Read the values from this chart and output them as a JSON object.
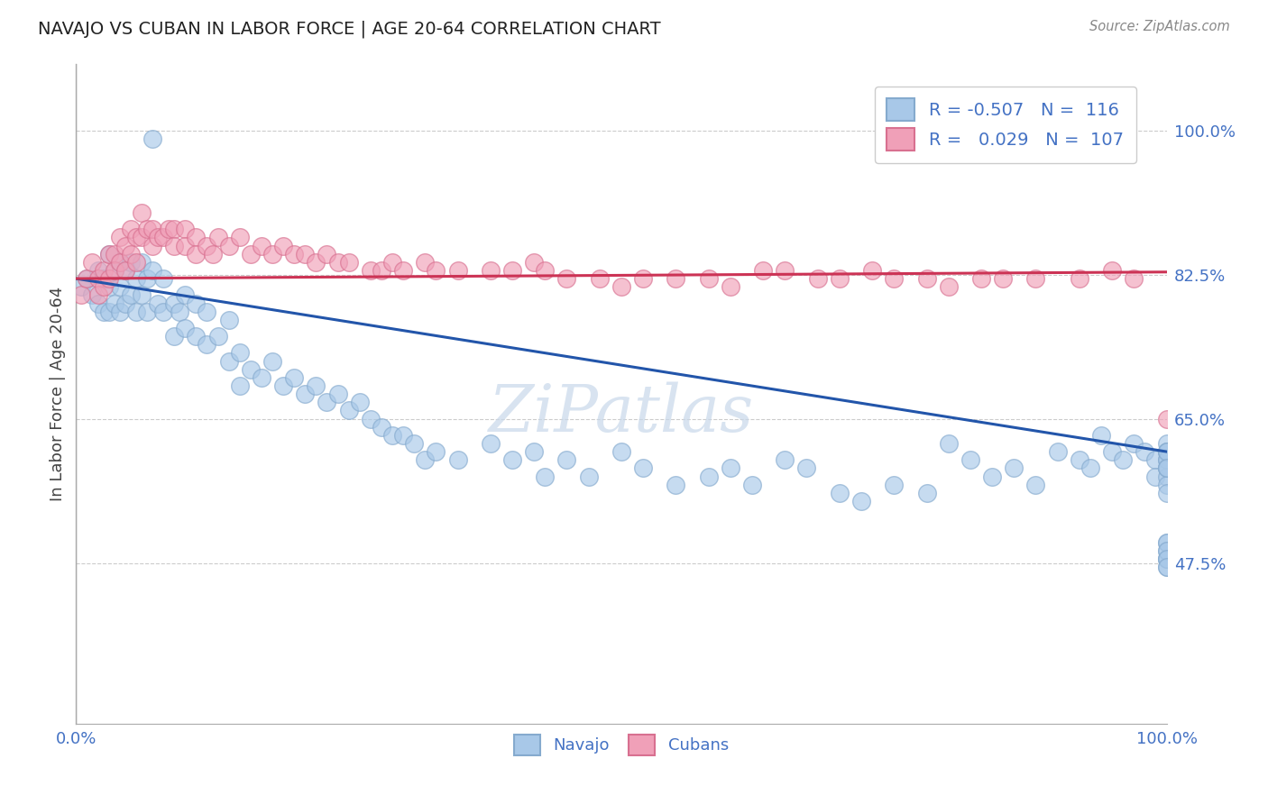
{
  "title": "NAVAJO VS CUBAN IN LABOR FORCE | AGE 20-64 CORRELATION CHART",
  "source": "Source: ZipAtlas.com",
  "ylabel": "In Labor Force | Age 20-64",
  "xlim": [
    0.0,
    1.0
  ],
  "ylim": [
    0.28,
    1.08
  ],
  "yticks": [
    0.475,
    0.65,
    0.825,
    1.0
  ],
  "ytick_labels": [
    "47.5%",
    "65.0%",
    "82.5%",
    "100.0%"
  ],
  "xtick_labels": [
    "0.0%",
    "100.0%"
  ],
  "navajo_R": -0.507,
  "navajo_N": 116,
  "cuban_R": 0.029,
  "cuban_N": 107,
  "navajo_color": "#a8c8e8",
  "navajo_edge_color": "#85aace",
  "navajo_line_color": "#2255aa",
  "cuban_color": "#f0a0b8",
  "cuban_edge_color": "#d87090",
  "cuban_line_color": "#cc3355",
  "legend_label_navajo": "Navajo",
  "legend_label_cuban": "Cubans",
  "background_color": "#ffffff",
  "grid_color": "#cccccc",
  "watermark_color": "#c8d8ea",
  "tick_color": "#4472c4",
  "title_color": "#222222",
  "source_color": "#888888",
  "navajo_line_start_y": 0.82,
  "navajo_line_end_y": 0.61,
  "cuban_line_start_y": 0.82,
  "cuban_line_end_y": 0.828,
  "navajo_scatter_x": [
    0.005,
    0.01,
    0.015,
    0.02,
    0.02,
    0.025,
    0.025,
    0.03,
    0.03,
    0.03,
    0.035,
    0.035,
    0.04,
    0.04,
    0.04,
    0.045,
    0.045,
    0.05,
    0.05,
    0.055,
    0.055,
    0.06,
    0.06,
    0.065,
    0.065,
    0.07,
    0.07,
    0.075,
    0.08,
    0.08,
    0.09,
    0.09,
    0.095,
    0.1,
    0.1,
    0.11,
    0.11,
    0.12,
    0.12,
    0.13,
    0.14,
    0.14,
    0.15,
    0.15,
    0.16,
    0.17,
    0.18,
    0.19,
    0.2,
    0.21,
    0.22,
    0.23,
    0.24,
    0.25,
    0.26,
    0.27,
    0.28,
    0.29,
    0.3,
    0.31,
    0.32,
    0.33,
    0.35,
    0.38,
    0.4,
    0.42,
    0.43,
    0.45,
    0.47,
    0.5,
    0.52,
    0.55,
    0.58,
    0.6,
    0.62,
    0.65,
    0.67,
    0.7,
    0.72,
    0.75,
    0.78,
    0.8,
    0.82,
    0.84,
    0.86,
    0.88,
    0.9,
    0.92,
    0.93,
    0.94,
    0.95,
    0.96,
    0.97,
    0.98,
    0.99,
    0.99,
    1.0,
    1.0,
    1.0,
    1.0,
    1.0,
    1.0,
    1.0,
    1.0,
    1.0,
    1.0,
    1.0,
    1.0,
    1.0,
    1.0,
    1.0,
    1.0,
    1.0,
    1.0,
    1.0,
    1.0,
    1.0
  ],
  "navajo_scatter_y": [
    0.81,
    0.82,
    0.8,
    0.83,
    0.79,
    0.82,
    0.78,
    0.85,
    0.81,
    0.78,
    0.83,
    0.79,
    0.84,
    0.81,
    0.78,
    0.83,
    0.79,
    0.84,
    0.8,
    0.82,
    0.78,
    0.84,
    0.8,
    0.82,
    0.78,
    0.99,
    0.83,
    0.79,
    0.82,
    0.78,
    0.79,
    0.75,
    0.78,
    0.8,
    0.76,
    0.79,
    0.75,
    0.78,
    0.74,
    0.75,
    0.77,
    0.72,
    0.73,
    0.69,
    0.71,
    0.7,
    0.72,
    0.69,
    0.7,
    0.68,
    0.69,
    0.67,
    0.68,
    0.66,
    0.67,
    0.65,
    0.64,
    0.63,
    0.63,
    0.62,
    0.6,
    0.61,
    0.6,
    0.62,
    0.6,
    0.61,
    0.58,
    0.6,
    0.58,
    0.61,
    0.59,
    0.57,
    0.58,
    0.59,
    0.57,
    0.6,
    0.59,
    0.56,
    0.55,
    0.57,
    0.56,
    0.62,
    0.6,
    0.58,
    0.59,
    0.57,
    0.61,
    0.6,
    0.59,
    0.63,
    0.61,
    0.6,
    0.62,
    0.61,
    0.6,
    0.58,
    0.62,
    0.61,
    0.6,
    0.59,
    0.61,
    0.58,
    0.6,
    0.59,
    0.57,
    0.56,
    0.61,
    0.59,
    0.48,
    0.5,
    0.49,
    0.48,
    0.47,
    0.5,
    0.49,
    0.48,
    0.47
  ],
  "cuban_scatter_x": [
    0.005,
    0.01,
    0.015,
    0.02,
    0.02,
    0.025,
    0.025,
    0.03,
    0.03,
    0.035,
    0.035,
    0.04,
    0.04,
    0.045,
    0.045,
    0.05,
    0.05,
    0.055,
    0.055,
    0.06,
    0.06,
    0.065,
    0.07,
    0.07,
    0.075,
    0.08,
    0.085,
    0.09,
    0.09,
    0.1,
    0.1,
    0.11,
    0.11,
    0.12,
    0.125,
    0.13,
    0.14,
    0.15,
    0.16,
    0.17,
    0.18,
    0.19,
    0.2,
    0.21,
    0.22,
    0.23,
    0.24,
    0.25,
    0.27,
    0.28,
    0.29,
    0.3,
    0.32,
    0.33,
    0.35,
    0.38,
    0.4,
    0.42,
    0.43,
    0.45,
    0.48,
    0.5,
    0.52,
    0.55,
    0.58,
    0.6,
    0.63,
    0.65,
    0.68,
    0.7,
    0.73,
    0.75,
    0.78,
    0.8,
    0.83,
    0.85,
    0.88,
    0.92,
    0.95,
    0.97,
    1.0
  ],
  "cuban_scatter_y": [
    0.8,
    0.82,
    0.84,
    0.82,
    0.8,
    0.83,
    0.81,
    0.85,
    0.82,
    0.85,
    0.83,
    0.87,
    0.84,
    0.86,
    0.83,
    0.88,
    0.85,
    0.87,
    0.84,
    0.9,
    0.87,
    0.88,
    0.86,
    0.88,
    0.87,
    0.87,
    0.88,
    0.88,
    0.86,
    0.88,
    0.86,
    0.87,
    0.85,
    0.86,
    0.85,
    0.87,
    0.86,
    0.87,
    0.85,
    0.86,
    0.85,
    0.86,
    0.85,
    0.85,
    0.84,
    0.85,
    0.84,
    0.84,
    0.83,
    0.83,
    0.84,
    0.83,
    0.84,
    0.83,
    0.83,
    0.83,
    0.83,
    0.84,
    0.83,
    0.82,
    0.82,
    0.81,
    0.82,
    0.82,
    0.82,
    0.81,
    0.83,
    0.83,
    0.82,
    0.82,
    0.83,
    0.82,
    0.82,
    0.81,
    0.82,
    0.82,
    0.82,
    0.82,
    0.83,
    0.82,
    0.65
  ]
}
